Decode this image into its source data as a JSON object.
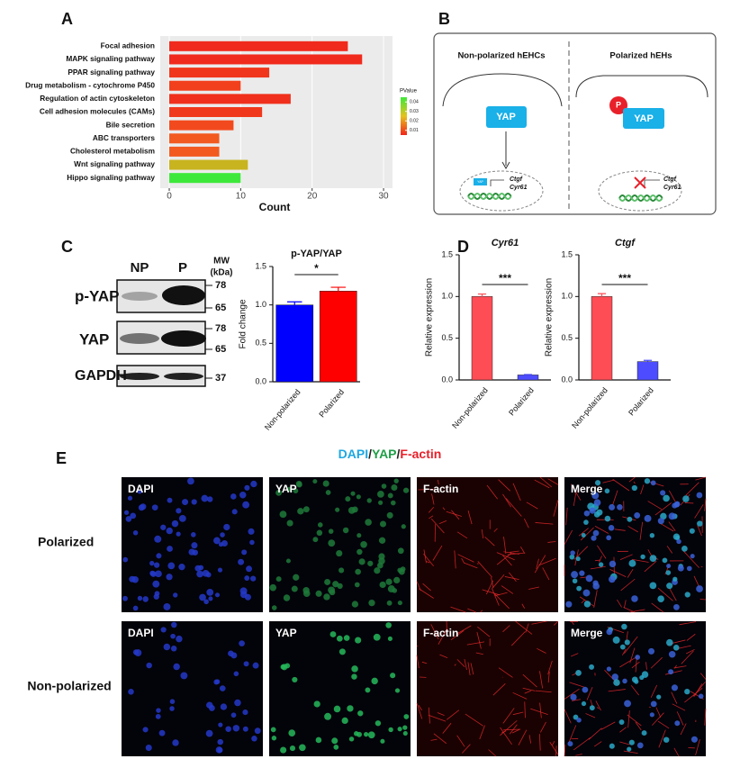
{
  "panel_labels": [
    "A",
    "B",
    "C",
    "D",
    "E"
  ],
  "chart_data": [
    {
      "type": "bar",
      "orientation": "horizontal",
      "categories": [
        "Focal adhesion",
        "MAPK signaling pathway",
        "PPAR signaling pathway",
        "Drug metabolism - cytochrome P450",
        "Regulation of actin cytoskeleton",
        "Cell adhesion molecules (CAMs)",
        "Bile secretion",
        "ABC transporters",
        "Cholesterol metabolism",
        "Wnt signaling pathway",
        "Hippo signaling pathway"
      ],
      "values": [
        25,
        27,
        14,
        10,
        17,
        13,
        9,
        7,
        7,
        11,
        10
      ],
      "colors": [
        "#f02a1c",
        "#f02a1c",
        "#f0361c",
        "#f2401c",
        "#f0301c",
        "#f0381c",
        "#f24a1e",
        "#f25a20",
        "#f25a20",
        "#c8b41e",
        "#3ee83a"
      ],
      "xlim": [
        0,
        31
      ],
      "xticks": [
        0,
        10,
        20,
        30
      ],
      "xlabel": "Count",
      "grid": true,
      "legend": {
        "title": "PValue",
        "ticks": [
          0.04,
          0.03,
          0.02,
          0.01
        ],
        "colors": [
          "#3ee83a",
          "#e6c21c",
          "#f2241a"
        ]
      }
    },
    {
      "type": "bar",
      "title": "p-YAP/YAP",
      "ylabel": "Fold change",
      "categories": [
        "Non-polarized",
        "Polarized"
      ],
      "values": [
        1.0,
        1.18
      ],
      "errors": [
        0.04,
        0.05
      ],
      "colors": [
        "#0000ff",
        "#ff0000"
      ],
      "ylim": [
        0,
        1.5
      ],
      "yticks": [
        {
          "value": 0,
          "label": "0.0"
        },
        0.5,
        {
          "value": 1,
          "label": "1.0"
        },
        1.5
      ],
      "significance": "*"
    },
    {
      "type": "bar",
      "title": "Cyr61",
      "ylabel": "Relative  expression",
      "categories": [
        "Non-polarized",
        "Polarized"
      ],
      "values": [
        1.0,
        0.06
      ],
      "errors": [
        0.03,
        0.005
      ],
      "colors": [
        "#ff4d55",
        "#4d4dff"
      ],
      "ylim": [
        0,
        1.5
      ],
      "yticks": [
        {
          "value": 0,
          "label": "0.0"
        },
        0.5,
        {
          "value": 1,
          "label": "1.0"
        },
        1.5
      ],
      "significance": "***"
    },
    {
      "type": "bar",
      "title": "Ctgf",
      "ylabel": "Relative  expression",
      "categories": [
        "Non-polarized",
        "Polarized"
      ],
      "values": [
        1.0,
        0.22
      ],
      "errors": [
        0.035,
        0.015
      ],
      "colors": [
        "#ff4d55",
        "#4d4dff"
      ],
      "ylim": [
        0,
        1.5
      ],
      "yticks": [
        {
          "value": 0,
          "label": "0.0"
        },
        0.5,
        {
          "value": 1,
          "label": "1.0"
        },
        1.5
      ],
      "significance": "***"
    }
  ],
  "diagram": {
    "left_title": "Non-polarized hEHCs",
    "right_title": "Polarized hEHs",
    "protein": "YAP",
    "phospho": "P",
    "genes": [
      "Ctgf",
      "Cyr61"
    ]
  },
  "blot": {
    "lanes": [
      "NP",
      "P"
    ],
    "mw_title": "MW",
    "mw_unit": "(kDa)",
    "rows": [
      {
        "label": "p-YAP",
        "markers": [
          "78",
          "65"
        ]
      },
      {
        "label": "YAP",
        "markers": [
          "78",
          "65"
        ]
      },
      {
        "label": "GAPDH",
        "markers": [
          "37"
        ]
      }
    ]
  },
  "microscopy": {
    "title_parts": [
      {
        "text": "DAPI",
        "color": "#1ea7e1"
      },
      {
        "text": "/",
        "color": "#222222"
      },
      {
        "text": "YAP",
        "color": "#1f9e48"
      },
      {
        "text": "/",
        "color": "#222222"
      },
      {
        "text": "F-actin",
        "color": "#e8202a"
      }
    ],
    "channels": [
      "DAPI",
      "YAP",
      "F-actin",
      "Merge"
    ],
    "rows": [
      "Polarized",
      "Non-polarized"
    ]
  }
}
